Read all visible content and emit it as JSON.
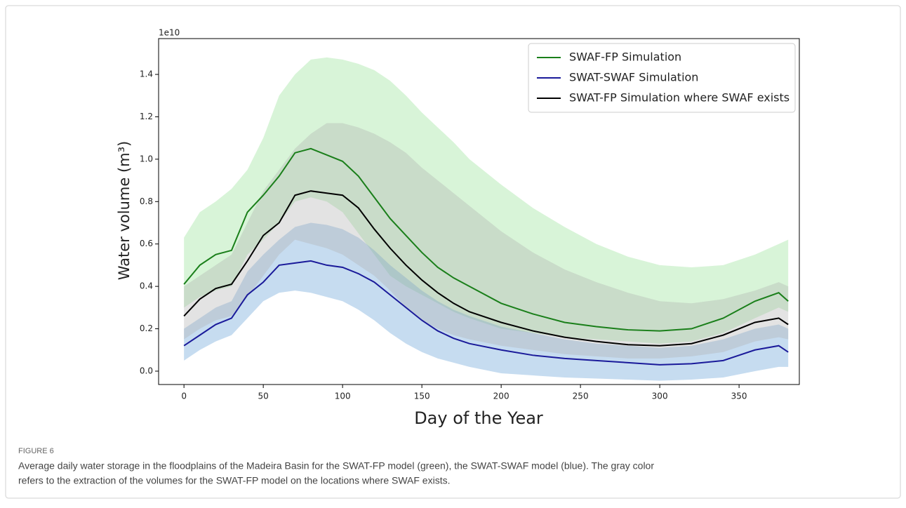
{
  "chart_data": {
    "type": "line",
    "y_offset_label": "1e10",
    "xlabel": "Day of the Year",
    "ylabel": "Water volume (m³)",
    "x": [
      0,
      10,
      20,
      30,
      40,
      50,
      60,
      70,
      80,
      90,
      100,
      110,
      120,
      130,
      140,
      150,
      160,
      170,
      180,
      200,
      220,
      240,
      260,
      280,
      300,
      320,
      340,
      360,
      375,
      381
    ],
    "series": [
      {
        "name": "SWAF-FP Simulation",
        "color": "#1a7f1a",
        "band_color": "#8fe08f",
        "values": [
          0.41,
          0.5,
          0.55,
          0.57,
          0.75,
          0.83,
          0.92,
          1.03,
          1.05,
          1.02,
          0.99,
          0.92,
          0.82,
          0.72,
          0.64,
          0.56,
          0.49,
          0.44,
          0.4,
          0.32,
          0.27,
          0.23,
          0.21,
          0.195,
          0.19,
          0.2,
          0.25,
          0.33,
          0.37,
          0.33
        ],
        "upper": [
          0.63,
          0.75,
          0.8,
          0.86,
          0.95,
          1.1,
          1.3,
          1.4,
          1.47,
          1.48,
          1.47,
          1.45,
          1.42,
          1.37,
          1.3,
          1.22,
          1.15,
          1.08,
          1.0,
          0.88,
          0.77,
          0.68,
          0.6,
          0.54,
          0.5,
          0.49,
          0.5,
          0.55,
          0.6,
          0.62
        ],
        "lower": [
          0.3,
          0.35,
          0.38,
          0.4,
          0.55,
          0.62,
          0.7,
          0.8,
          0.82,
          0.8,
          0.75,
          0.65,
          0.55,
          0.45,
          0.4,
          0.36,
          0.32,
          0.28,
          0.25,
          0.2,
          0.18,
          0.16,
          0.15,
          0.14,
          0.13,
          0.14,
          0.18,
          0.25,
          0.3,
          0.28
        ]
      },
      {
        "name": "SWAT-SWAF Simulation",
        "color": "#1a1a9a",
        "band_color": "#5b9bd5",
        "values": [
          0.12,
          0.17,
          0.22,
          0.25,
          0.36,
          0.42,
          0.5,
          0.51,
          0.52,
          0.5,
          0.49,
          0.46,
          0.42,
          0.36,
          0.3,
          0.24,
          0.19,
          0.155,
          0.13,
          0.1,
          0.075,
          0.06,
          0.05,
          0.04,
          0.03,
          0.035,
          0.05,
          0.1,
          0.12,
          0.09
        ],
        "upper": [
          0.2,
          0.25,
          0.3,
          0.33,
          0.47,
          0.55,
          0.62,
          0.68,
          0.7,
          0.69,
          0.67,
          0.63,
          0.57,
          0.5,
          0.44,
          0.38,
          0.33,
          0.29,
          0.26,
          0.21,
          0.18,
          0.15,
          0.13,
          0.12,
          0.11,
          0.12,
          0.15,
          0.2,
          0.22,
          0.2
        ],
        "lower": [
          0.05,
          0.1,
          0.14,
          0.17,
          0.25,
          0.33,
          0.37,
          0.38,
          0.37,
          0.35,
          0.33,
          0.29,
          0.24,
          0.18,
          0.13,
          0.09,
          0.06,
          0.04,
          0.02,
          -0.01,
          -0.02,
          -0.03,
          -0.035,
          -0.04,
          -0.045,
          -0.04,
          -0.03,
          0.0,
          0.02,
          0.02
        ]
      },
      {
        "name": "SWAT-FP Simulation where SWAF exists",
        "color": "#000000",
        "band_color": "#b0b0b0",
        "values": [
          0.26,
          0.34,
          0.39,
          0.41,
          0.52,
          0.64,
          0.7,
          0.83,
          0.85,
          0.84,
          0.83,
          0.77,
          0.67,
          0.58,
          0.5,
          0.43,
          0.37,
          0.32,
          0.28,
          0.23,
          0.19,
          0.16,
          0.14,
          0.125,
          0.12,
          0.13,
          0.17,
          0.23,
          0.25,
          0.22
        ],
        "upper": [
          0.4,
          0.45,
          0.5,
          0.55,
          0.7,
          0.85,
          0.95,
          1.05,
          1.12,
          1.17,
          1.17,
          1.15,
          1.12,
          1.08,
          1.03,
          0.96,
          0.9,
          0.84,
          0.78,
          0.66,
          0.56,
          0.48,
          0.42,
          0.37,
          0.33,
          0.32,
          0.34,
          0.38,
          0.42,
          0.4
        ],
        "lower": [
          0.15,
          0.2,
          0.24,
          0.26,
          0.35,
          0.45,
          0.55,
          0.62,
          0.6,
          0.58,
          0.55,
          0.5,
          0.45,
          0.38,
          0.3,
          0.24,
          0.2,
          0.17,
          0.15,
          0.12,
          0.1,
          0.08,
          0.07,
          0.06,
          0.06,
          0.07,
          0.09,
          0.14,
          0.16,
          0.15
        ]
      }
    ],
    "xlim": [
      -16,
      388
    ],
    "xticks": [
      0,
      50,
      100,
      150,
      200,
      250,
      300,
      350
    ],
    "ylim": [
      -0.063,
      1.569
    ],
    "yticks": [
      {
        "value": 0,
        "label": "0.0"
      },
      {
        "value": 0.2,
        "label": "0.2"
      },
      {
        "value": 0.4,
        "label": "0.4"
      },
      {
        "value": 0.6,
        "label": "0.6"
      },
      {
        "value": 0.8,
        "label": "0.8"
      },
      {
        "value": 1,
        "label": "1.0"
      },
      {
        "value": 1.2,
        "label": "1.2"
      },
      {
        "value": 1.4,
        "label": "1.4"
      }
    ],
    "legend": "upper right",
    "band_opacity": 0.35
  },
  "caption": {
    "label": "FIGURE 6",
    "lines": [
      "Average daily water storage in the floodplains of the Madeira Basin for the SWAT-FP model (green), the SWAT-SWAF model (blue). The gray color",
      "refers to the extraction of the volumes for the SWAT-FP model on the locations where SWAF exists."
    ]
  }
}
